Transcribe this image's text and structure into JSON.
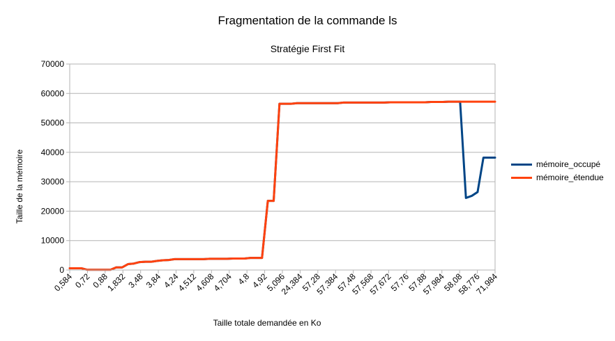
{
  "chart_data": {
    "type": "line",
    "title": "Fragmentation de la commande ls",
    "subtitle": "Stratégie First Fit",
    "xlabel": "Taille totale demandée en Ko",
    "ylabel": "Taille de la mémoire",
    "ylim": [
      0,
      70000
    ],
    "y_ticks": [
      "0",
      "10000",
      "20000",
      "30000",
      "40000",
      "50000",
      "60000",
      "70000"
    ],
    "x_tick_labels": [
      "0,584",
      "0,72",
      "0,88",
      "1,832",
      "3,48",
      "3,84",
      "4,24",
      "4,512",
      "4,608",
      "4,704",
      "4,8",
      "4,92",
      "5,096",
      "24,384",
      "57,28",
      "57,384",
      "57,48",
      "57,568",
      "57,672",
      "57,76",
      "57,88",
      "57,984",
      "58,08",
      "58,776",
      "71,984"
    ],
    "grid": "horizontal",
    "legend_position": "right",
    "series": [
      {
        "name": "mémoire_occupé",
        "color": "#004586",
        "values": [
          584,
          584,
          600,
          80,
          80,
          80,
          80,
          80,
          900,
          900,
          2000,
          2200,
          2700,
          2800,
          2800,
          3100,
          3300,
          3400,
          3700,
          3700,
          3700,
          3700,
          3700,
          3700,
          3800,
          3800,
          3800,
          3800,
          3900,
          3900,
          3900,
          4100,
          4100,
          4100,
          23500,
          23500,
          56500,
          56500,
          56500,
          56700,
          56700,
          56700,
          56700,
          56700,
          56700,
          56700,
          56700,
          56900,
          56900,
          56900,
          56900,
          56900,
          56900,
          56900,
          56900,
          57000,
          57000,
          57000,
          57000,
          57000,
          57000,
          57000,
          57100,
          57100,
          57100,
          57200,
          57200,
          57200,
          24500,
          25200,
          26500,
          38200,
          38200,
          38200
        ]
      },
      {
        "name": "mémoire_étendue",
        "color": "#ff420e",
        "values": [
          584,
          584,
          600,
          80,
          80,
          80,
          80,
          80,
          900,
          900,
          2000,
          2200,
          2700,
          2800,
          2800,
          3100,
          3300,
          3400,
          3700,
          3700,
          3700,
          3700,
          3700,
          3700,
          3800,
          3800,
          3800,
          3800,
          3900,
          3900,
          3900,
          4100,
          4100,
          4100,
          23500,
          23500,
          56500,
          56500,
          56500,
          56700,
          56700,
          56700,
          56700,
          56700,
          56700,
          56700,
          56700,
          56900,
          56900,
          56900,
          56900,
          56900,
          56900,
          56900,
          56900,
          57000,
          57000,
          57000,
          57000,
          57000,
          57000,
          57000,
          57100,
          57100,
          57100,
          57200,
          57200,
          57200,
          57200,
          57200,
          57200,
          57200,
          57200,
          57200
        ]
      }
    ]
  }
}
